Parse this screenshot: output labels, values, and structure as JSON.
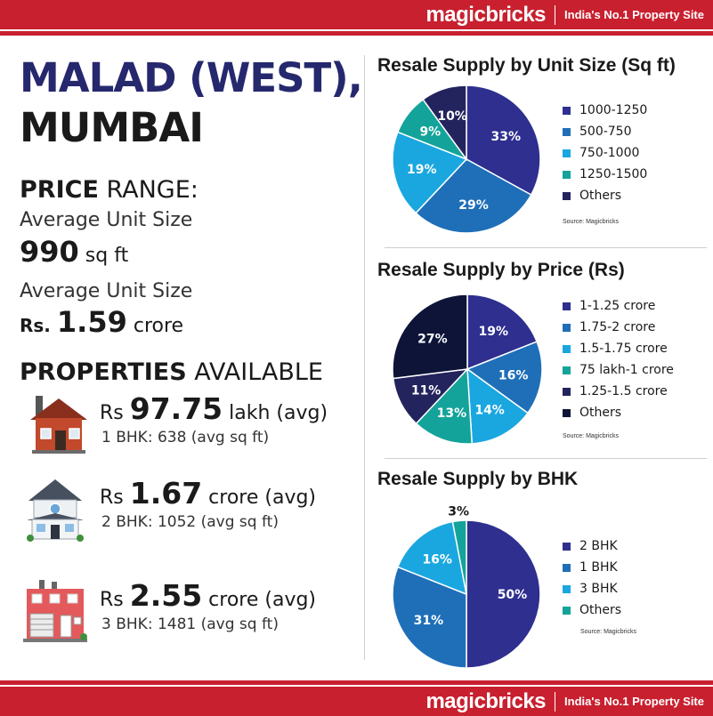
{
  "header": {
    "logo": "magicbricks",
    "tagline": "India's No.1 Property Site"
  },
  "footer": {
    "logo": "magicbricks",
    "tagline": "India's No.1 Property Site"
  },
  "title": {
    "line1": "MALAD (WEST),",
    "line2": "MUMBAI"
  },
  "price_range": {
    "heading_bold": "PRICE",
    "heading_rest": " RANGE:",
    "label1": "Average Unit Size",
    "value1": "990",
    "unit1": "sq ft",
    "label2": "Average Unit Size",
    "currency2": "Rs.",
    "value2": "1.59",
    "unit2": "crore"
  },
  "properties": {
    "heading_bold": "PROPERTIES",
    "heading_rest": " AVAILABLE",
    "items": [
      {
        "rs": "Rs",
        "value": "97.75",
        "unit": "lakh (avg)",
        "detail": "1 BHK: 638 (avg sq ft)"
      },
      {
        "rs": "Rs",
        "value": "1.67",
        "unit": "crore (avg)",
        "detail": "2 BHK: 1052 (avg sq ft)"
      },
      {
        "rs": "Rs",
        "value": "2.55",
        "unit": "crore (avg)",
        "detail": "3 BHK: 1481 (avg sq ft)"
      }
    ]
  },
  "chart_data": [
    {
      "type": "pie",
      "title": "Resale Supply by Unit Size (Sq ft)",
      "source": "Source: Magicbricks",
      "categories": [
        "1000-1250",
        "500-750",
        "750-1000",
        "1250-1500",
        "Others"
      ],
      "values": [
        33,
        29,
        19,
        9,
        10
      ],
      "labels": [
        "33%",
        "29%",
        "19%",
        "9%",
        "10%"
      ],
      "colors": [
        "#2e2f8f",
        "#1f6fb8",
        "#1aa7e0",
        "#14a39a",
        "#23235e"
      ],
      "legend_position": "right"
    },
    {
      "type": "pie",
      "title": "Resale Supply by Price (Rs)",
      "source": "Source: Magicbricks",
      "categories": [
        "1-1.25 crore",
        "1.75-2 crore",
        "1.5-1.75 crore",
        "75 lakh-1 crore",
        "1.25-1.5 crore",
        "Others"
      ],
      "values": [
        19,
        16,
        14,
        13,
        11,
        27
      ],
      "labels": [
        "19%",
        "16%",
        "14%",
        "13%",
        "11%",
        "27%"
      ],
      "colors": [
        "#2e2f8f",
        "#1f6fb8",
        "#1aa7e0",
        "#14a39a",
        "#23235e",
        "#0d1438"
      ],
      "legend_position": "right"
    },
    {
      "type": "pie",
      "title": "Resale Supply by BHK",
      "source": "Source: Magicbricks",
      "categories": [
        "2 BHK",
        "1 BHK",
        "3 BHK",
        "Others"
      ],
      "values": [
        50,
        31,
        16,
        3
      ],
      "labels": [
        "50%",
        "31%",
        "16%",
        "3%"
      ],
      "colors": [
        "#2e2f8f",
        "#1f6fb8",
        "#1aa7e0",
        "#14a39a"
      ],
      "legend_position": "right"
    }
  ]
}
